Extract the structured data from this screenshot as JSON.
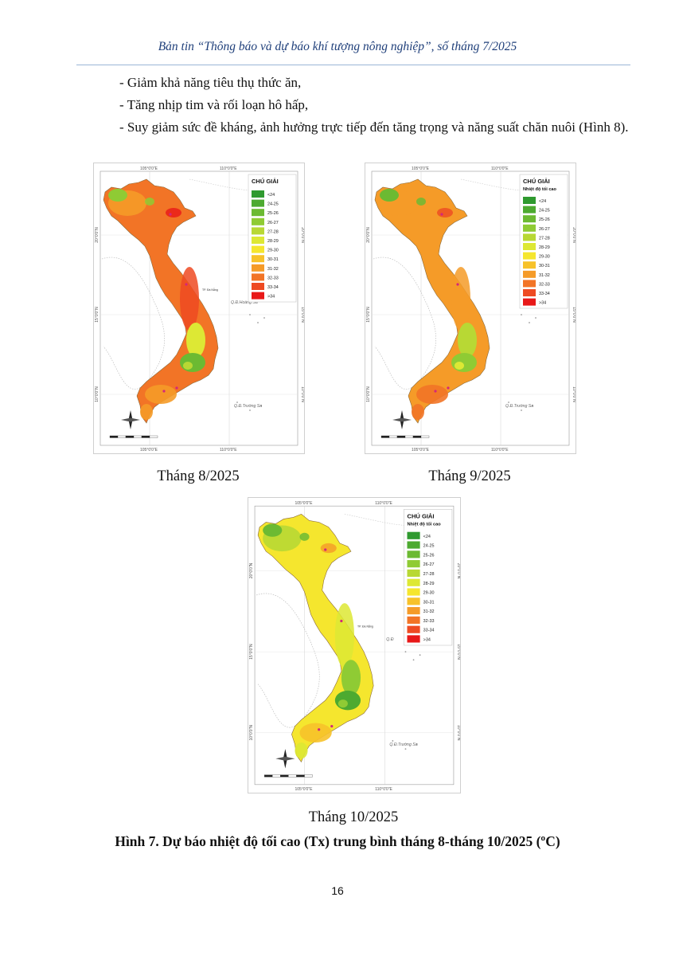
{
  "header": {
    "text": "Bản tin “Thông báo và dự báo khí tượng nông nghiệp”, số tháng 7/2025"
  },
  "body": {
    "lines": [
      "- Giảm khả năng tiêu thụ thức ăn,",
      "- Tăng nhịp tim và rối loạn hô hấp,",
      "- Suy giảm sức đề kháng, ảnh hưởng trực tiếp đến tăng trọng và năng suất chăn nuôi (Hình 8)."
    ]
  },
  "maps": [
    {
      "caption": "Tháng 8/2025",
      "legend_title": "CHÚ GIẢI",
      "legend_subtitle": "",
      "tone": "hot",
      "paracel_label": "Q.Đ.Hoàng Sa",
      "spratly_label": "Q.Đ.Trường Sa",
      "lon_top": [
        "105°0'0\"E",
        "110°0'0\"E"
      ],
      "lon_bottom": [
        "105°0'0\"E",
        "110°0'0\"E"
      ],
      "lat_labels": [
        "20°0'0\"N",
        "15°0'0\"N",
        "10°0'0\"N"
      ],
      "city_label": "TP. Đà Nẵng"
    },
    {
      "caption": "Tháng 9/2025",
      "legend_title": "CHÚ GIẢI",
      "legend_subtitle": "Nhiệt độ tối cao",
      "tone": "warm",
      "paracel_label": "",
      "spratly_label": "Q.Đ.Trường Sa",
      "lon_top": [
        "105°0'0\"E",
        "110°0'0\"E"
      ],
      "lon_bottom": [
        "105°0'0\"E",
        "110°0'0\"E"
      ],
      "lat_labels": [
        "20°0'0\"N",
        "15°0'0\"N",
        "10°0'0\"N"
      ],
      "city_label": ""
    },
    {
      "caption": "Tháng 10/2025",
      "legend_title": "CHÚ GIẢI",
      "legend_subtitle": "Nhiệt độ tối cao",
      "tone": "mild",
      "paracel_label": "Q.Đ",
      "spratly_label": "Q.Đ.Trường Sa",
      "lon_top": [
        "105°0'0\"E",
        "110°0'0\"E"
      ],
      "lon_bottom": [
        "105°0'0\"E",
        "110°0'0\"E"
      ],
      "lat_labels": [
        "20°0'0\"N",
        "15°0'0\"N",
        "10°0'0\"N"
      ],
      "city_label": "TP. Đà Nẵng"
    }
  ],
  "legend": {
    "classes": [
      "<24",
      "24-25",
      "25-26",
      "26-27",
      "27-28",
      "28-29",
      "29-30",
      "30-31",
      "31-32",
      "32-33",
      "33-34",
      ">34"
    ],
    "colors": [
      "#2f9a2f",
      "#4daa30",
      "#6cba32",
      "#8fcb34",
      "#b8d834",
      "#dde834",
      "#f5e62e",
      "#f7c22a",
      "#f59b28",
      "#f27426",
      "#ee4a22",
      "#e81818"
    ]
  },
  "figure_title": "Hình 7. Dự báo nhiệt độ tối cao (Tx) trung bình tháng 8-tháng 10/2025 (ºC)",
  "page_number": "16"
}
